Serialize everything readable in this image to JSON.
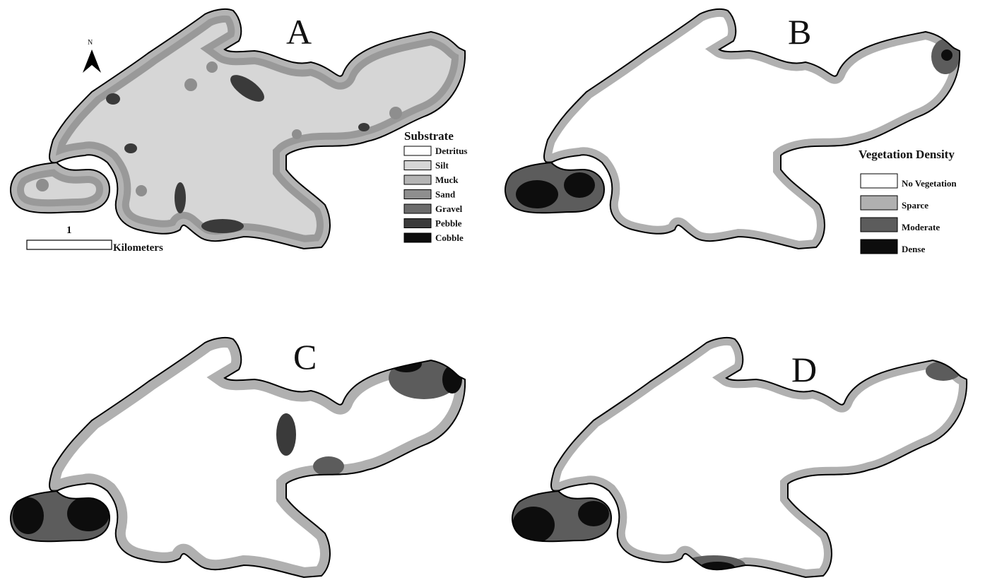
{
  "panels": [
    {
      "letter": "A",
      "kind": "substrate"
    },
    {
      "letter": "B",
      "kind": "vegetation"
    },
    {
      "letter": "C",
      "kind": "vegetation"
    },
    {
      "letter": "D",
      "kind": "vegetation"
    }
  ],
  "north_arrow": {
    "label": "N"
  },
  "scale_bar": {
    "value": "1",
    "unit": "Kilometers"
  },
  "substrate_legend": {
    "title": "Substrate",
    "items": [
      {
        "label": "Detritus",
        "color": "#ffffff"
      },
      {
        "label": "Silt",
        "color": "#d6d6d6"
      },
      {
        "label": "Muck",
        "color": "#b4b4b4"
      },
      {
        "label": "Sand",
        "color": "#8e8e8e"
      },
      {
        "label": "Gravel",
        "color": "#6b6b6b"
      },
      {
        "label": "Pebble",
        "color": "#3a3a3a"
      },
      {
        "label": "Cobble",
        "color": "#0d0d0d"
      }
    ]
  },
  "vegetation_legend": {
    "title": "Vegetation Density",
    "items": [
      {
        "label": "No Vegetation",
        "color": "#ffffff"
      },
      {
        "label": "Sparce",
        "color": "#b0b0b0"
      },
      {
        "label": "Moderate",
        "color": "#5c5c5c"
      },
      {
        "label": "Dense",
        "color": "#0d0d0d"
      }
    ]
  }
}
